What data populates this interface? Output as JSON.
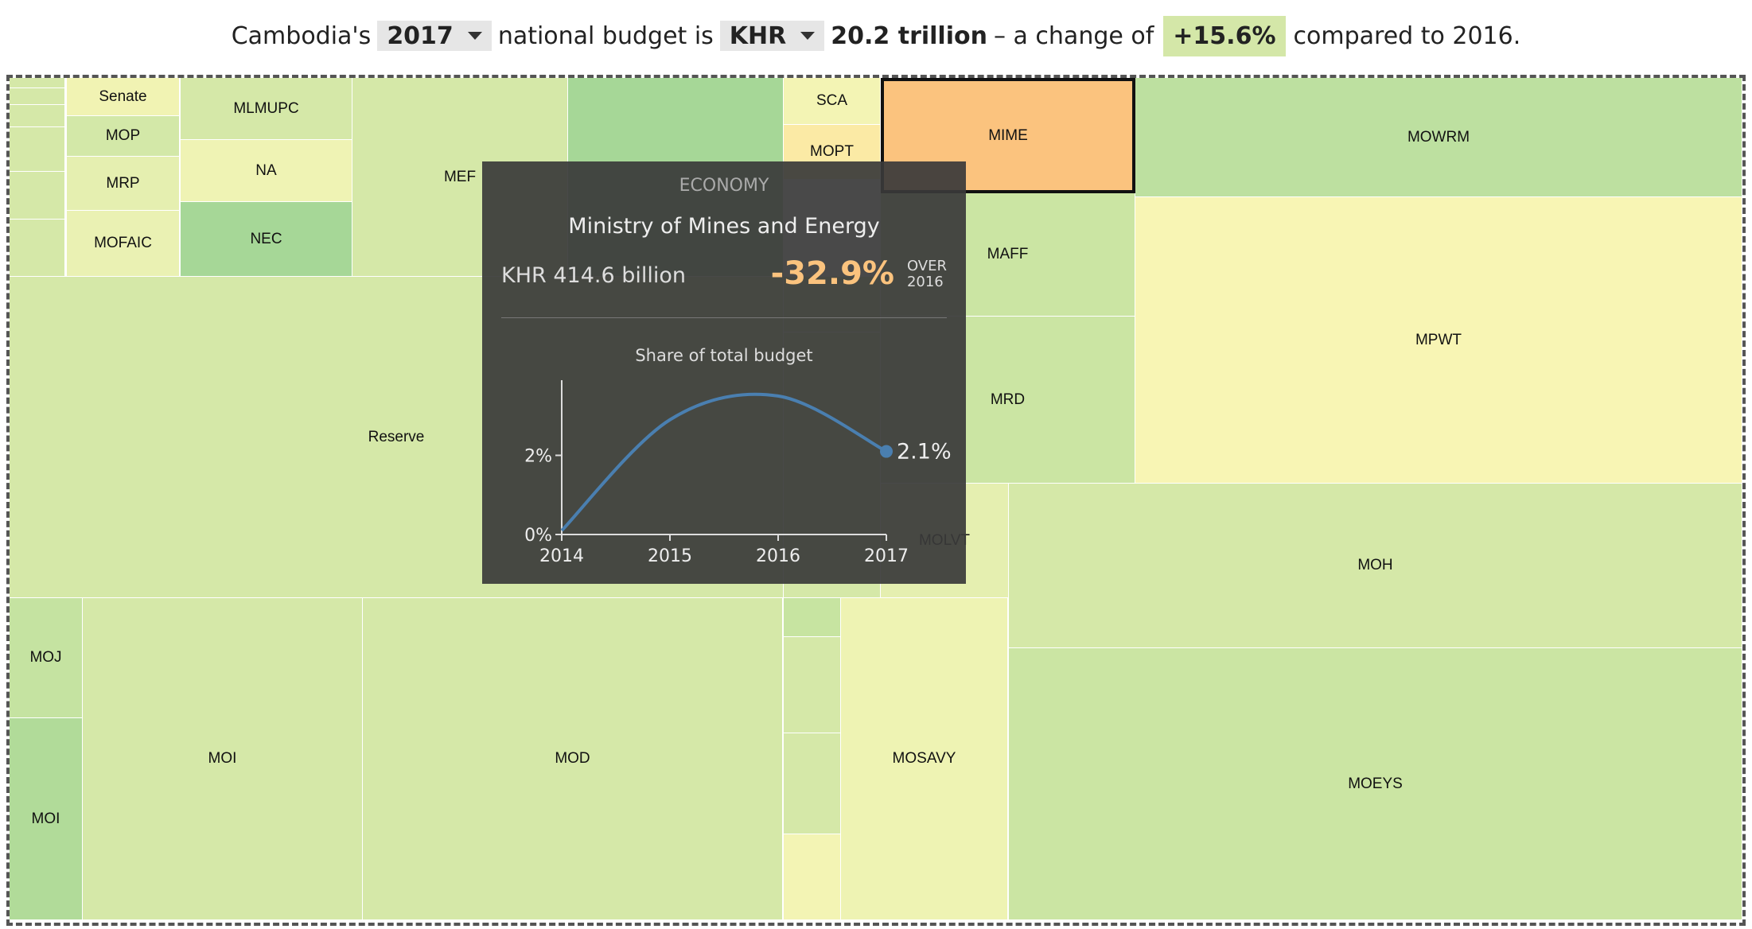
{
  "header": {
    "prefix": "Cambodia's",
    "year": "2017",
    "middle": "national budget is",
    "currency": "KHR",
    "amount": "20.2 trillion",
    "change_text": "– a change of",
    "change": "+15.6%",
    "suffix": "compared to 2016."
  },
  "colors": {
    "light_yellow": "#f3f4b4",
    "yellow_green": "#e5efb0",
    "pale_green": "#d5e8a8",
    "light_green": "#cbe5a3",
    "green": "#bde0a0",
    "mid_green": "#a6d797",
    "peach": "#fde4a5",
    "orange_selected": "#fbc37e"
  },
  "treemap": {
    "cells": [
      {
        "label": "",
        "color": "#d5e8a8"
      },
      {
        "label": "",
        "color": "#d5e8a8"
      },
      {
        "label": "",
        "color": "#d5e8a8"
      },
      {
        "label": "",
        "color": "#d5e8a8"
      },
      {
        "label": "",
        "color": "#d5e8a8"
      },
      {
        "label": "",
        "color": "#d5e8a8"
      },
      {
        "label": "Senate",
        "color": "#f1f3b3"
      },
      {
        "label": "MOP",
        "color": "#d3e8a8"
      },
      {
        "label": "MRP",
        "color": "#e5efb0"
      },
      {
        "label": "MOFAIC",
        "color": "#eaf1b3"
      },
      {
        "label": "MLMUPC",
        "color": "#d5e8a8"
      },
      {
        "label": "NA",
        "color": "#eff3b4"
      },
      {
        "label": "NEC",
        "color": "#a6d797"
      },
      {
        "label": "MEF",
        "color": "#d5e8a8"
      },
      {
        "label": "",
        "color": "#a6d797"
      },
      {
        "label": "SCA",
        "color": "#f3f4b4"
      },
      {
        "label": "MOPT",
        "color": "#fbeaa5"
      },
      {
        "label": "MIME",
        "color": "#fbc37e"
      },
      {
        "label": "MOWRM",
        "color": "#bde0a0"
      },
      {
        "label": "MAFF",
        "color": "#cbe5a3"
      },
      {
        "label": "MPWT",
        "color": "#f8f5b4"
      },
      {
        "label": "MRD",
        "color": "#cbe5a3"
      },
      {
        "label": "Reserve",
        "color": "#d5e8a8"
      },
      {
        "label": "",
        "color": "#d5e8a8"
      },
      {
        "label": "",
        "color": "#d5e8a8"
      },
      {
        "label": "MOLVT",
        "color": "#e5efb0"
      },
      {
        "label": "MOH",
        "color": "#d5e8a8"
      },
      {
        "label": "MOJ",
        "color": "#c5e3a1"
      },
      {
        "label": "MOI",
        "color": "#b1db99"
      },
      {
        "label": "MOI",
        "color": "#d5e8a8"
      },
      {
        "label": "MOD",
        "color": "#d5e8a8"
      },
      {
        "label": "",
        "color": "#c7e4a1"
      },
      {
        "label": "",
        "color": "#d5e8a8"
      },
      {
        "label": "",
        "color": "#d5e8a8"
      },
      {
        "label": "",
        "color": "#f3f4b4"
      },
      {
        "label": "MOSAVY",
        "color": "#eef3b3"
      },
      {
        "label": "MOEYS",
        "color": "#cbe5a3"
      }
    ]
  },
  "tooltip": {
    "category": "ECONOMY",
    "title": "Ministry of Mines and Energy",
    "amount": "KHR 414.6 billion",
    "change": "-32.9%",
    "over_label": "OVER",
    "over_year": "2016",
    "chart_title": "Share of total budget",
    "end_label": "2.1%"
  },
  "chart_data": {
    "type": "line",
    "title": "Share of total budget",
    "x": [
      2014,
      2015,
      2016,
      2017
    ],
    "series": [
      {
        "values": [
          0.1,
          2.9,
          3.5,
          2.1
        ]
      }
    ],
    "xticks": [
      "2014",
      "2015",
      "2016",
      "2017"
    ],
    "yticks": [
      "0%",
      "2%"
    ],
    "ylim": [
      0,
      3.9
    ],
    "line_color": "#4a7fb0"
  }
}
